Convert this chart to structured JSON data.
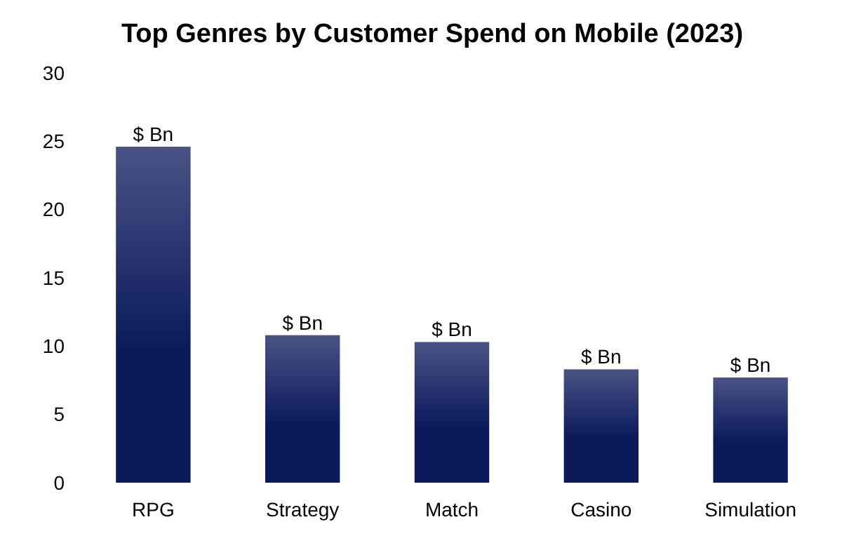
{
  "chart_data": {
    "type": "bar",
    "title": "Top Genres by Customer Spend on Mobile (2023)",
    "categories": [
      "RPG",
      "Strategy",
      "Match",
      "Casino",
      "Simulation"
    ],
    "values": [
      24.6,
      10.8,
      10.3,
      8.3,
      7.7
    ],
    "value_labels": [
      "$ Bn",
      "$ Bn",
      "$ Bn",
      "$ Bn",
      "$ Bn"
    ],
    "color": "#0c1a5c",
    "ylim": [
      0,
      30
    ],
    "yticks": [
      0,
      5,
      10,
      15,
      20,
      25,
      30
    ],
    "grid": false
  }
}
